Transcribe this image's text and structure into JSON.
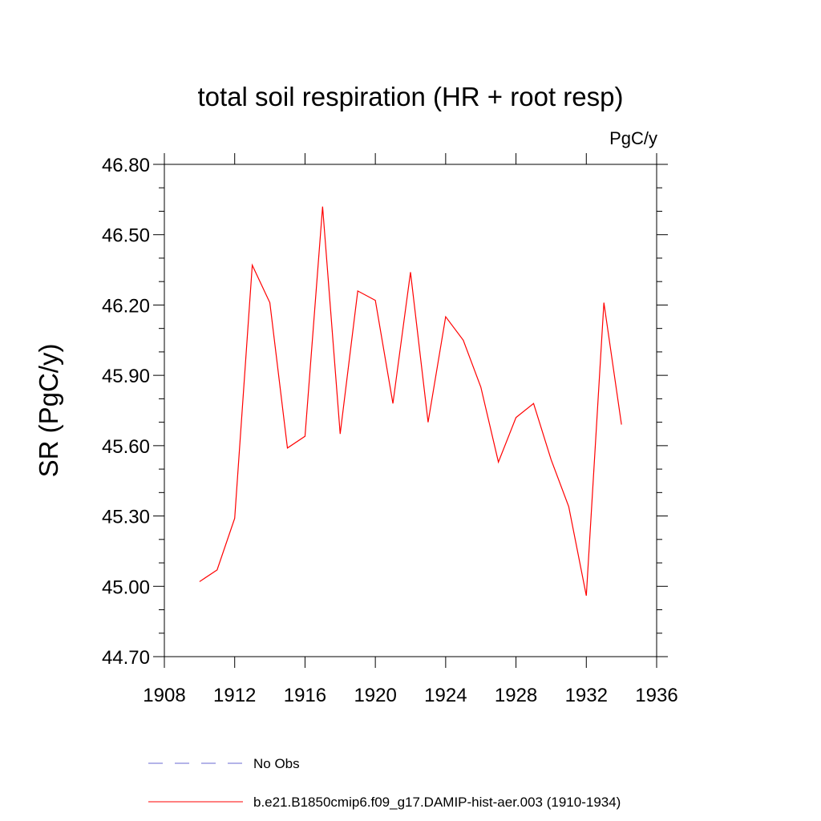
{
  "chart_data": {
    "type": "line",
    "title": "total soil respiration (HR + root resp)",
    "units": "PgC/y",
    "ylabel": "SR  (PgC/y)",
    "xlabel": "",
    "xlim": [
      1908,
      1936
    ],
    "ylim": [
      44.7,
      46.8
    ],
    "x_ticks": [
      "1908",
      "1912",
      "1916",
      "1920",
      "1924",
      "1928",
      "1932",
      "1936"
    ],
    "y_ticks": [
      "44.70",
      "45.00",
      "45.30",
      "45.60",
      "45.90",
      "46.20",
      "46.50",
      "46.80"
    ],
    "grid": false,
    "legend_position": "bottom",
    "series": [
      {
        "name": "No Obs",
        "style": "dashed",
        "color": "#6a6ad0",
        "x": [],
        "y": []
      },
      {
        "name": "b.e21.B1850cmip6.f09_g17.DAMIP-hist-aer.003 (1910-1934)",
        "style": "solid",
        "color": "#ff0000",
        "x": [
          1910,
          1911,
          1912,
          1913,
          1914,
          1915,
          1916,
          1917,
          1918,
          1919,
          1920,
          1921,
          1922,
          1923,
          1924,
          1925,
          1926,
          1927,
          1928,
          1929,
          1930,
          1931,
          1932,
          1933,
          1934
        ],
        "y": [
          45.02,
          45.07,
          45.29,
          46.37,
          46.21,
          45.59,
          45.64,
          46.62,
          45.65,
          46.26,
          46.22,
          45.78,
          46.34,
          45.7,
          46.15,
          46.05,
          45.85,
          45.53,
          45.72,
          45.78,
          45.54,
          45.34,
          44.96,
          46.21,
          45.69
        ]
      }
    ]
  }
}
